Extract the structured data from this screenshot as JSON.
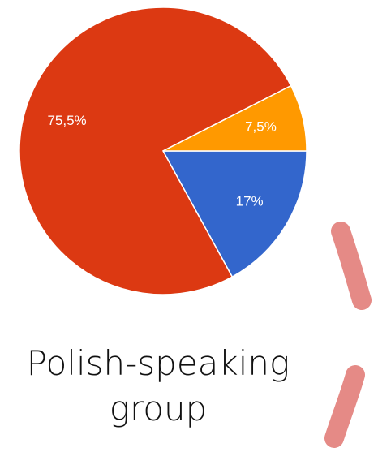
{
  "chart_data": {
    "type": "pie",
    "title": "Polish-speaking group",
    "values": [
      17,
      75.5,
      7.5
    ],
    "value_labels": [
      "17%",
      "75,5%",
      "7,5%"
    ],
    "colors": [
      "#3366cc",
      "#dc3912",
      "#ff9900"
    ]
  }
}
